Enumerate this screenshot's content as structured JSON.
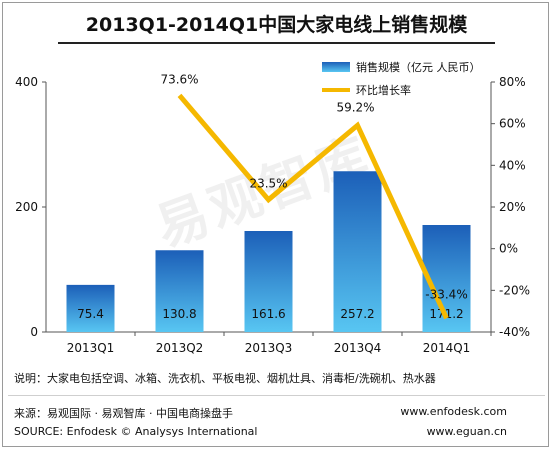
{
  "chart_data": {
    "type": "bar",
    "title": "2013Q1-2014Q1中国大家电线上销售规模",
    "categories": [
      "2013Q1",
      "2013Q2",
      "2013Q3",
      "2013Q4",
      "2014Q1"
    ],
    "series": [
      {
        "name": "销售规模（亿元 人民币）",
        "type": "bar",
        "axis": "left",
        "values": [
          75.4,
          130.8,
          161.6,
          257.2,
          171.2
        ],
        "labels": [
          "75.4",
          "130.8",
          "161.6",
          "257.2",
          "171.2"
        ],
        "color": "#2f7fd6"
      },
      {
        "name": "环比增长率",
        "type": "line",
        "axis": "right",
        "values": [
          null,
          73.6,
          23.5,
          59.2,
          -33.4
        ],
        "labels": [
          "",
          "73.6%",
          "23.5%",
          "59.2%",
          "-33.4%"
        ],
        "color": "#f5b800"
      }
    ],
    "left_axis": {
      "range": [
        0,
        400
      ],
      "ticks": [
        0,
        200,
        400
      ],
      "tick_labels": [
        "0",
        "200",
        "400"
      ]
    },
    "right_axis": {
      "range": [
        -40,
        80
      ],
      "ticks": [
        -40,
        -20,
        0,
        20,
        40,
        60,
        80
      ],
      "tick_labels": [
        "-40%",
        "-20%",
        "0%",
        "20%",
        "40%",
        "60%",
        "80%"
      ]
    },
    "legend_position": "top-right",
    "grid": false
  },
  "note": "说明：大家电包括空调、冰箱、洗衣机、平板电视、烟机灶具、消毒柜/洗碗机、热水器",
  "source_cn": "来源：易观国际 · 易观智库 · 中国电商操盘手",
  "source_en": "SOURCE: Enfodesk © Analysys International",
  "url1": "www.enfodesk.com",
  "url2": "www.eguan.cn",
  "watermark": "易观智库"
}
